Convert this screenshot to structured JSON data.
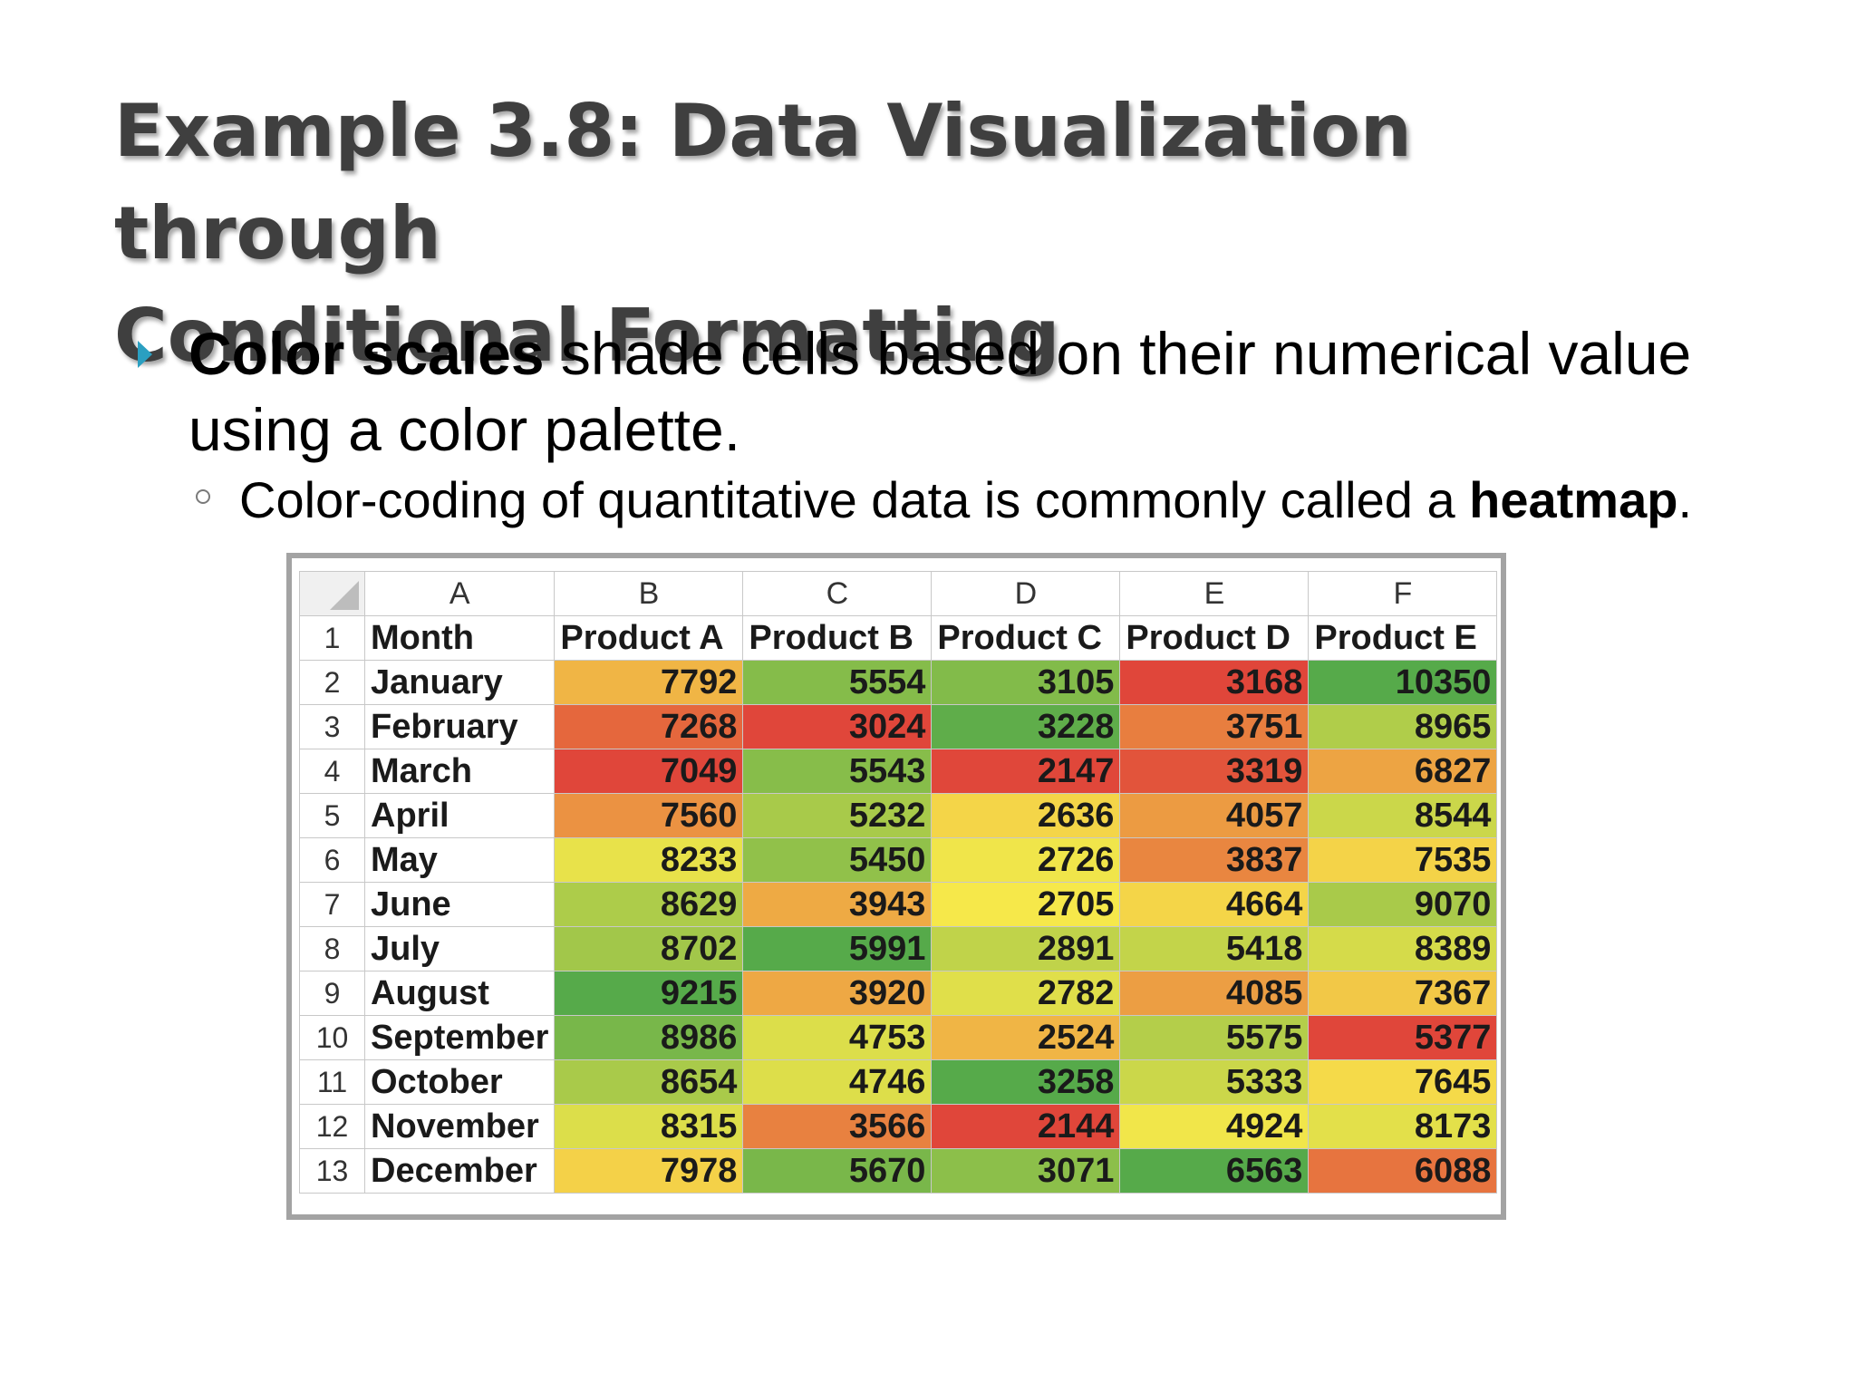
{
  "slide": {
    "title_line1": "Example 3.8: Data Visualization through",
    "title_line2": "Conditional Formatting",
    "bullet1_bold": "Color scales",
    "bullet1_rest_line1": " shade cells based on their numerical value",
    "bullet1_line2": "using a color palette.",
    "bullet2_text": "Color-coding of quantitative data is commonly called a ",
    "bullet2_bold": "heatmap",
    "bullet2_end": "."
  },
  "spreadsheet": {
    "column_letters": [
      "A",
      "B",
      "C",
      "D",
      "E",
      "F"
    ],
    "header_row": [
      "Month",
      "Product A",
      "Product B",
      "Product C",
      "Product D",
      "Product E"
    ],
    "rows": [
      {
        "n": "2",
        "month": "January",
        "values": [
          7792,
          5554,
          3105,
          3168,
          10350
        ]
      },
      {
        "n": "3",
        "month": "February",
        "values": [
          7268,
          3024,
          3228,
          3751,
          8965
        ]
      },
      {
        "n": "4",
        "month": "March",
        "values": [
          7049,
          5543,
          2147,
          3319,
          6827
        ]
      },
      {
        "n": "5",
        "month": "April",
        "values": [
          7560,
          5232,
          2636,
          4057,
          8544
        ]
      },
      {
        "n": "6",
        "month": "May",
        "values": [
          8233,
          5450,
          2726,
          3837,
          7535
        ]
      },
      {
        "n": "7",
        "month": "June",
        "values": [
          8629,
          3943,
          2705,
          4664,
          9070
        ]
      },
      {
        "n": "8",
        "month": "July",
        "values": [
          8702,
          5991,
          2891,
          5418,
          8389
        ]
      },
      {
        "n": "9",
        "month": "August",
        "values": [
          9215,
          3920,
          2782,
          4085,
          7367
        ]
      },
      {
        "n": "10",
        "month": "September",
        "values": [
          8986,
          4753,
          2524,
          5575,
          5377
        ]
      },
      {
        "n": "11",
        "month": "October",
        "values": [
          8654,
          4746,
          3258,
          5333,
          7645
        ]
      },
      {
        "n": "12",
        "month": "November",
        "values": [
          8315,
          3566,
          2144,
          4924,
          8173
        ]
      },
      {
        "n": "13",
        "month": "December",
        "values": [
          7978,
          5670,
          3071,
          6563,
          6088
        ]
      }
    ],
    "header_row_number": "1",
    "color_scale": {
      "low": "#e0463a",
      "mid": "#f7e84a",
      "high": "#56aa4a"
    }
  }
}
